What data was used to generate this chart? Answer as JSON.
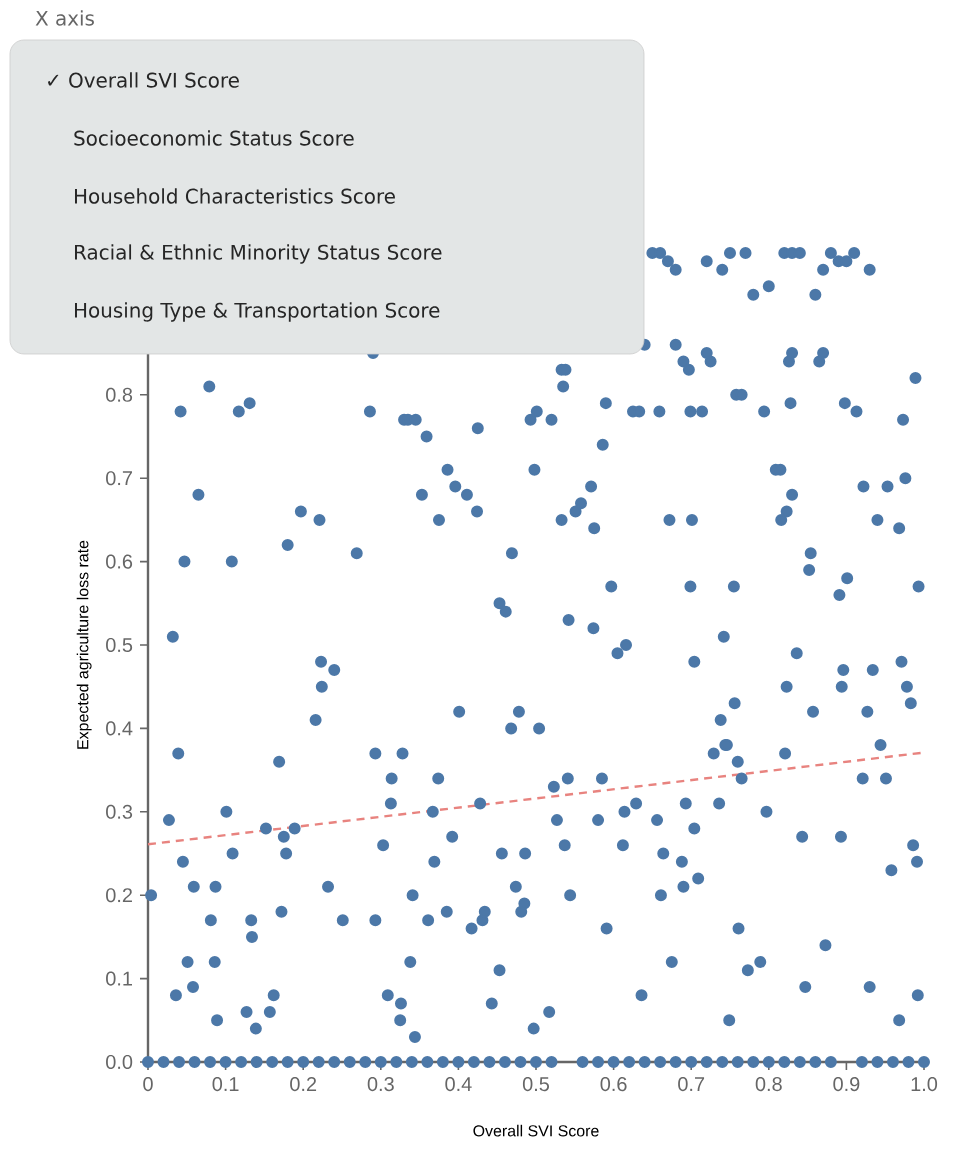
{
  "chart_data": {
    "type": "scatter",
    "xlabel": "Overall SVI Score",
    "ylabel": "Expected agriculture loss rate",
    "annotations": [
      "X axis",
      "✓ Overall SVI Score",
      "Socioeconomic Status Score",
      "Household Characteristics Score",
      "Racial & Ethnic Minority Status Score",
      "Housing Type & Transportation Score"
    ],
    "xlim": [
      0,
      1
    ],
    "ylim": [
      0,
      1
    ],
    "xticks": [
      0,
      {
        "value": 0.1,
        "label": "0.1"
      },
      {
        "value": 0.2,
        "label": "0.2"
      },
      {
        "value": 0.3,
        "label": "0.3"
      },
      {
        "value": 0.4,
        "label": "0.4"
      },
      {
        "value": 0.5,
        "label": "0.5"
      },
      {
        "value": 0.6,
        "label": "0.6"
      },
      {
        "value": 0.7,
        "label": "0.7"
      },
      {
        "value": 0.8,
        "label": "0.8"
      },
      {
        "value": 0.9,
        "label": "0.9"
      },
      {
        "value": 1,
        "label": "1.0"
      }
    ],
    "yticks": [
      {
        "value": 0,
        "label": "0.0"
      },
      {
        "value": 0.1,
        "label": "0.1"
      },
      {
        "value": 0.2,
        "label": "0.2"
      },
      {
        "value": 0.3,
        "label": "0.3"
      },
      {
        "value": 0.4,
        "label": "0.4"
      },
      {
        "value": 0.5,
        "label": "0.5"
      },
      {
        "value": 0.6,
        "label": "0.6"
      },
      {
        "value": 0.7,
        "label": "0.7"
      },
      {
        "value": 0.8,
        "label": "0.8"
      }
    ],
    "grid": false,
    "marker": "circle",
    "series": [
      {
        "color": "#4c78a8",
        "x": [
          0.004,
          0.027,
          0.039,
          0.036,
          0.045,
          0.059,
          0.051,
          0.058,
          0.081,
          0.087,
          0.086,
          0.089,
          0.101,
          0.109,
          0.127,
          0.133,
          0.134,
          0.139,
          0.152,
          0.157,
          0.162,
          0.169,
          0.172,
          0.175,
          0.178,
          0.189,
          0.232,
          0.251,
          0.293,
          0.293,
          0.303,
          0.309,
          0.313,
          0.314,
          0.326,
          0.325,
          0.328,
          0.338,
          0.341,
          0.344,
          0.361,
          0.367,
          0.369,
          0.374,
          0.385,
          0.392,
          0.417,
          0.428,
          0.431,
          0.434,
          0.443,
          0.453,
          0.456,
          0.474,
          0.481,
          0.485,
          0.486,
          0.497,
          0.517,
          0.523,
          0.527,
          0.537,
          0.541,
          0.544,
          0.58,
          0.585,
          0.591,
          0.612,
          0.614,
          0.629,
          0.636,
          0.656,
          0.661,
          0.664,
          0.675,
          0.688,
          0.69,
          0.693,
          0.704,
          0.709,
          0.729,
          0.736,
          0.744,
          0.749,
          0.765,
          0.761,
          0.76,
          0.773,
          0.789,
          0.797,
          0.821,
          0.843,
          0.847,
          0.873,
          0.893,
          0.921,
          0.93,
          0.944,
          0.951,
          0.958,
          0.968,
          0.986,
          0.991,
          0.992,
          0.032,
          0.042,
          0.047,
          0.065,
          0.079,
          0.108,
          0.117,
          0.131,
          0.18,
          0.197,
          0.216,
          0.221,
          0.223,
          0.224,
          0.24,
          0.269,
          0.286,
          0.33,
          0.335,
          0.345,
          0.353,
          0.359,
          0.375,
          0.386,
          0.396,
          0.401,
          0.411,
          0.424,
          0.425,
          0.453,
          0.461,
          0.468,
          0.469,
          0.478,
          0.493,
          0.501,
          0.498,
          0.504,
          0.52,
          0.533,
          0.538,
          0.535,
          0.533,
          0.542,
          0.551,
          0.558,
          0.571,
          0.574,
          0.575,
          0.586,
          0.59,
          0.597,
          0.605,
          0.616,
          0.625,
          0.633,
          0.659,
          0.672,
          0.697,
          0.699,
          0.714,
          0.701,
          0.699,
          0.704,
          0.725,
          0.738,
          0.742,
          0.746,
          0.756,
          0.755,
          0.758,
          0.765,
          0.794,
          0.809,
          0.815,
          0.816,
          0.823,
          0.828,
          0.83,
          0.826,
          0.836,
          0.823,
          0.854,
          0.852,
          0.857,
          0.865,
          0.891,
          0.894,
          0.896,
          0.901,
          0.898,
          0.913,
          0.922,
          0.927,
          0.934,
          0.94,
          0.953,
          0.968,
          0.971,
          0.973,
          0.976,
          0.978,
          0.983,
          0.989,
          0.993,
          0.65,
          0.66,
          0.67,
          0.68,
          0.72,
          0.74,
          0.75,
          0.77,
          0.78,
          0.8,
          0.82,
          0.83,
          0.84,
          0.86,
          0.87,
          0.88,
          0.89,
          0.9,
          0.91,
          0.93,
          0.64,
          0.68,
          0.69,
          0.72,
          0.83,
          0.87,
          0.29,
          0,
          0.02,
          0.04,
          0.06,
          0.08,
          0.1,
          0.12,
          0.14,
          0.16,
          0.18,
          0.2,
          0.22,
          0.24,
          0.26,
          0.28,
          0.3,
          0.32,
          0.34,
          0.36,
          0.38,
          0.4,
          0.42,
          0.44,
          0.46,
          0.48,
          0.5,
          0.52,
          0.56,
          0.58,
          0.6,
          0.62,
          0.64,
          0.66,
          0.68,
          0.7,
          0.72,
          0.74,
          0.76,
          0.78,
          0.8,
          0.82,
          0.84,
          0.86,
          0.88,
          0.92,
          0.94,
          0.96,
          0.98,
          1
        ],
        "values": [
          0.2,
          0.29,
          0.37,
          0.08,
          0.24,
          0.21,
          0.12,
          0.09,
          0.17,
          0.21,
          0.12,
          0.05,
          0.3,
          0.25,
          0.06,
          0.17,
          0.15,
          0.04,
          0.28,
          0.06,
          0.08,
          0.36,
          0.18,
          0.27,
          0.25,
          0.28,
          0.21,
          0.17,
          0.37,
          0.17,
          0.26,
          0.08,
          0.31,
          0.34,
          0.07,
          0.05,
          0.37,
          0.12,
          0.2,
          0.03,
          0.17,
          0.3,
          0.24,
          0.34,
          0.18,
          0.27,
          0.16,
          0.31,
          0.17,
          0.18,
          0.07,
          0.11,
          0.25,
          0.21,
          0.18,
          0.19,
          0.25,
          0.04,
          0.06,
          0.33,
          0.29,
          0.26,
          0.34,
          0.2,
          0.29,
          0.34,
          0.16,
          0.26,
          0.3,
          0.31,
          0.08,
          0.29,
          0.2,
          0.25,
          0.12,
          0.24,
          0.21,
          0.31,
          0.28,
          0.22,
          0.37,
          0.31,
          0.38,
          0.05,
          0.34,
          0.16,
          0.36,
          0.11,
          0.12,
          0.3,
          0.37,
          0.27,
          0.09,
          0.14,
          0.27,
          0.34,
          0.09,
          0.38,
          0.34,
          0.23,
          0.05,
          0.26,
          0.24,
          0.08,
          0.51,
          0.78,
          0.6,
          0.68,
          0.81,
          0.6,
          0.78,
          0.79,
          0.62,
          0.66,
          0.41,
          0.65,
          0.48,
          0.45,
          0.47,
          0.61,
          0.78,
          0.77,
          0.77,
          0.77,
          0.68,
          0.75,
          0.65,
          0.71,
          0.69,
          0.42,
          0.68,
          0.66,
          0.76,
          0.55,
          0.54,
          0.4,
          0.61,
          0.42,
          0.77,
          0.78,
          0.71,
          0.4,
          0.77,
          0.83,
          0.83,
          0.81,
          0.65,
          0.53,
          0.66,
          0.67,
          0.69,
          0.52,
          0.64,
          0.74,
          0.79,
          0.57,
          0.49,
          0.5,
          0.78,
          0.78,
          0.78,
          0.65,
          0.83,
          0.78,
          0.78,
          0.65,
          0.57,
          0.48,
          0.84,
          0.41,
          0.51,
          0.38,
          0.43,
          0.57,
          0.8,
          0.8,
          0.78,
          0.71,
          0.71,
          0.65,
          0.66,
          0.79,
          0.68,
          0.84,
          0.49,
          0.45,
          0.61,
          0.59,
          0.42,
          0.84,
          0.56,
          0.45,
          0.47,
          0.58,
          0.79,
          0.78,
          0.69,
          0.42,
          0.47,
          0.65,
          0.69,
          0.64,
          0.48,
          0.77,
          0.7,
          0.45,
          0.43,
          0.82,
          0.57,
          0.97,
          0.97,
          0.96,
          0.95,
          0.96,
          0.95,
          0.97,
          0.97,
          0.92,
          0.93,
          0.97,
          0.97,
          0.97,
          0.92,
          0.95,
          0.97,
          0.96,
          0.96,
          0.97,
          0.95,
          0.86,
          0.86,
          0.84,
          0.85,
          0.85,
          0.85,
          0.85,
          0,
          0,
          0,
          0,
          0,
          0,
          0,
          0,
          0,
          0,
          0,
          0,
          0,
          0,
          0,
          0,
          0,
          0,
          0,
          0,
          0,
          0,
          0,
          0,
          0,
          0,
          0,
          0,
          0,
          0,
          0,
          0,
          0,
          0,
          0,
          0,
          0,
          0,
          0,
          0,
          0,
          0,
          0,
          0,
          0,
          0,
          0,
          0,
          0
        ]
      },
      {
        "type": "line",
        "marker": "none",
        "color": "#e8837f",
        "line_style": "dashed",
        "x": [
          0,
          1
        ],
        "values": [
          0.261,
          0.371
        ]
      }
    ]
  }
}
